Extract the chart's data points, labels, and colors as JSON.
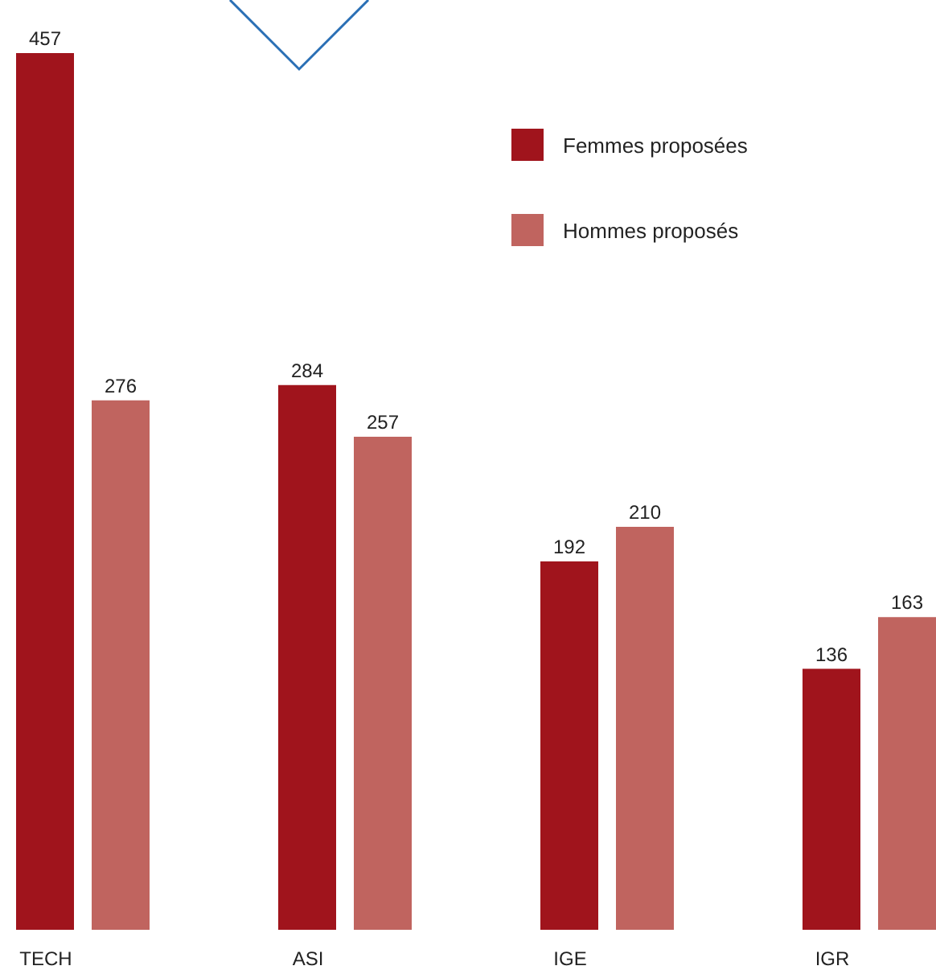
{
  "chart_data": {
    "type": "bar",
    "categories": [
      "TECH",
      "ASI",
      "IGE",
      "IGR"
    ],
    "series": [
      {
        "name": "Femmes proposées",
        "color": "#a0141c",
        "values": [
          457,
          284,
          192,
          136
        ]
      },
      {
        "name": "Hommes proposés",
        "color": "#c0645f",
        "values": [
          276,
          257,
          210,
          163
        ]
      }
    ],
    "data_labels": true,
    "legend": "top right",
    "grid": false
  }
}
